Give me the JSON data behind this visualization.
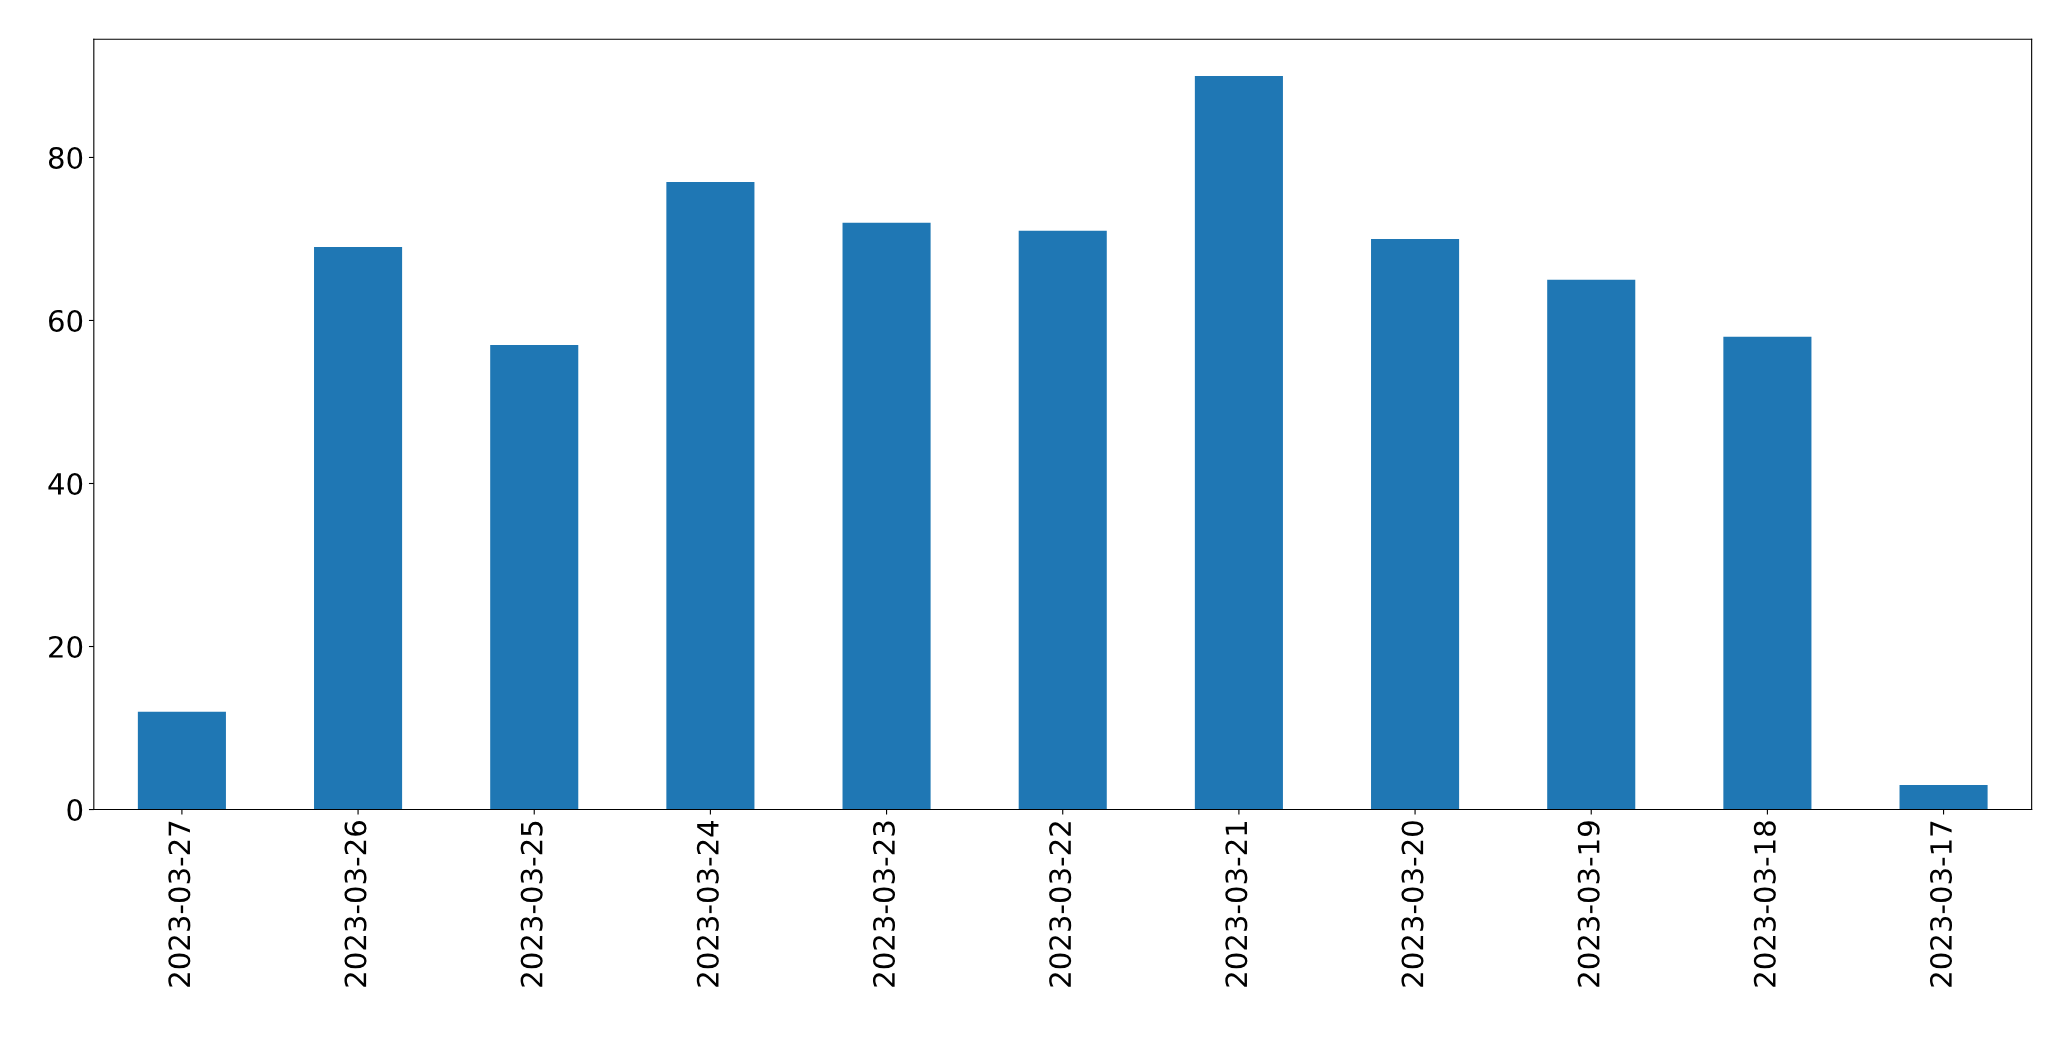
{
  "chart_data": {
    "type": "bar",
    "categories": [
      "2023-03-27",
      "2023-03-26",
      "2023-03-25",
      "2023-03-24",
      "2023-03-23",
      "2023-03-22",
      "2023-03-21",
      "2023-03-20",
      "2023-03-19",
      "2023-03-18",
      "2023-03-17"
    ],
    "values": [
      12,
      69,
      57,
      77,
      72,
      71,
      90,
      70,
      65,
      58,
      3
    ],
    "color": "#1f77b4",
    "ylim": [
      0,
      94.5
    ],
    "yticks": [
      0,
      20,
      40,
      60,
      80
    ],
    "grid": false,
    "legend": false
  }
}
